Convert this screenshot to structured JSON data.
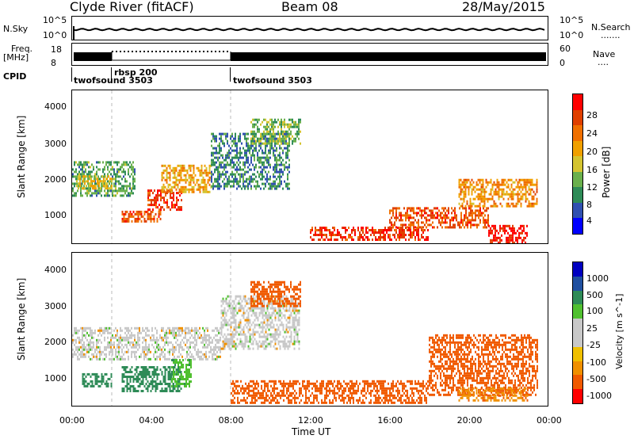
{
  "header": {
    "station": "Clyde River (fitACF)",
    "beam": "Beam 08",
    "date": "28/May/2015"
  },
  "noise_panel": {
    "left_label": "N.Sky",
    "left_ticks": [
      "10^5",
      "10^0"
    ],
    "right_ticks": [
      "10^5",
      "10^0"
    ],
    "right_label": "N.Search",
    "right_legend": "......."
  },
  "freq_panel": {
    "left_label_top": "Freq.",
    "left_label_bottom": "[MHz]",
    "left_ticks": [
      "18",
      "8"
    ],
    "right_ticks": [
      "60",
      "0"
    ],
    "right_label": "Nave",
    "right_legend": "...."
  },
  "cpid": {
    "label": "CPID",
    "segments": [
      {
        "name": "twofsound 3503",
        "start_hour": 0
      },
      {
        "name": "rbsp 200",
        "start_hour": 2
      },
      {
        "name": "twofsound 3503",
        "start_hour": 8
      }
    ]
  },
  "time_axis": {
    "title": "Time UT",
    "ticks": [
      "00:00",
      "04:00",
      "08:00",
      "12:00",
      "16:00",
      "20:00",
      "00:00"
    ]
  },
  "colors": {
    "power": [
      "#0000ff",
      "#3050b0",
      "#2e8b57",
      "#6ab04c",
      "#d4c430",
      "#f0a000",
      "#f07000",
      "#e04000",
      "#ff0000"
    ],
    "velocity": [
      "#ff0000",
      "#f05a00",
      "#f09000",
      "#f0c000",
      "#c8c8c8",
      "#c8c8c8",
      "#50c030",
      "#2e8b57",
      "#2050a0",
      "#0000c0"
    ]
  },
  "chart_data": [
    {
      "type": "heatmap",
      "panel": "power",
      "ylabel": "Slant Range [km]",
      "ylim": [
        180,
        4500
      ],
      "y_ticks": [
        "4000",
        "3000",
        "2000",
        "1000"
      ],
      "x_range_hours": [
        0,
        24
      ],
      "colorbar_label": "Power [dB]",
      "colorbar_ticks": [
        "28",
        "24",
        "20",
        "16",
        "12",
        "8",
        "4"
      ],
      "colorbar_range": [
        0,
        30
      ],
      "regions": [
        {
          "t0": 0,
          "t1": 3.2,
          "r0": 1500,
          "r1": 2500,
          "level": 10
        },
        {
          "t0": 0.2,
          "t1": 2.0,
          "r0": 1700,
          "r1": 2100,
          "level": 16
        },
        {
          "t0": 2.5,
          "t1": 4.5,
          "r0": 800,
          "r1": 1100,
          "level": 24
        },
        {
          "t0": 3.8,
          "t1": 5.5,
          "r0": 1100,
          "r1": 1700,
          "level": 26
        },
        {
          "t0": 4.5,
          "t1": 7.0,
          "r0": 1600,
          "r1": 2400,
          "level": 18
        },
        {
          "t0": 7.0,
          "t1": 11.0,
          "r0": 1700,
          "r1": 3300,
          "level": 8
        },
        {
          "t0": 9.0,
          "t1": 11.5,
          "r0": 3000,
          "r1": 3700,
          "level": 12
        },
        {
          "t0": 12.0,
          "t1": 18.0,
          "r0": 250,
          "r1": 650,
          "level": 26
        },
        {
          "t0": 16.0,
          "t1": 21.0,
          "r0": 600,
          "r1": 1200,
          "level": 24
        },
        {
          "t0": 19.5,
          "t1": 23.5,
          "r0": 1200,
          "r1": 2000,
          "level": 20
        },
        {
          "t0": 21.0,
          "t1": 23.0,
          "r0": 200,
          "r1": 700,
          "level": 28
        }
      ]
    },
    {
      "type": "heatmap",
      "panel": "velocity",
      "ylabel": "Slant Range [km]",
      "ylim": [
        180,
        4500
      ],
      "y_ticks": [
        "4000",
        "3000",
        "2000",
        "1000"
      ],
      "x_range_hours": [
        0,
        24
      ],
      "colorbar_label": "Velocity [m s^-1]",
      "colorbar_ticks": [
        "1000",
        "500",
        "100",
        "25",
        "-25",
        "-100",
        "-500",
        "-1000"
      ],
      "regions": [
        {
          "t0": 0,
          "t1": 7.5,
          "r0": 1500,
          "r1": 2400,
          "level": 0
        },
        {
          "t0": 7.5,
          "t1": 11.5,
          "r0": 1800,
          "r1": 3300,
          "level": 0
        },
        {
          "t0": 9.0,
          "t1": 11.5,
          "r0": 3000,
          "r1": 3700,
          "level": -150
        },
        {
          "t0": 0.5,
          "t1": 2.0,
          "r0": 700,
          "r1": 1100,
          "level": 150
        },
        {
          "t0": 2.5,
          "t1": 5.5,
          "r0": 600,
          "r1": 1300,
          "level": 150
        },
        {
          "t0": 5.0,
          "t1": 6.0,
          "r0": 700,
          "r1": 1500,
          "level": 80
        },
        {
          "t0": 8.0,
          "t1": 18.0,
          "r0": 250,
          "r1": 900,
          "level": -200
        },
        {
          "t0": 18.0,
          "t1": 23.5,
          "r0": 500,
          "r1": 2200,
          "level": -400
        },
        {
          "t0": 19.5,
          "t1": 23.0,
          "r0": 300,
          "r1": 700,
          "level": -80
        }
      ]
    }
  ]
}
